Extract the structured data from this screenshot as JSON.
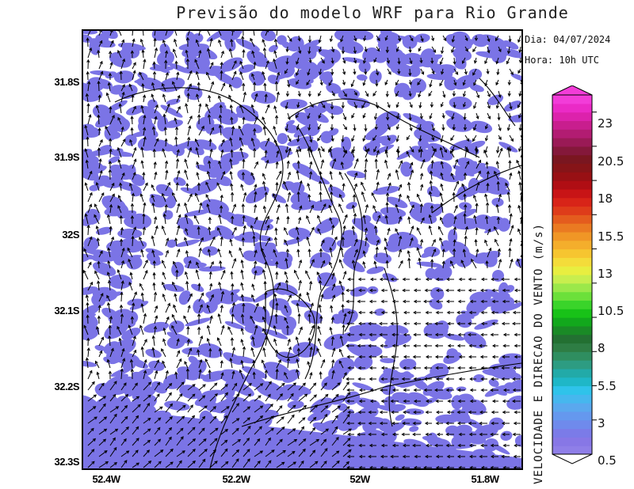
{
  "title": "Previsão do modelo WRF para Rio Grande",
  "info": {
    "date": "Dia: 04/07/2024",
    "hour": "Hora: 10h UTC"
  },
  "axes": {
    "lat_labels": [
      "31.8S",
      "31.9S",
      "32S",
      "32.1S",
      "32.2S",
      "32.3S"
    ],
    "lon_labels": [
      "52.4W",
      "52.2W",
      "52W",
      "51.8W"
    ]
  },
  "colorbar": {
    "title": "VELOCIDADE E DIRECAO DO VENTO (m/s)",
    "ticks": [
      "23",
      "20.5",
      "18",
      "15.5",
      "13",
      "10.5",
      "8",
      "5.5",
      "3",
      "0.5"
    ],
    "colors": [
      "#8f7fe8",
      "#8777e6",
      "#7b7be8",
      "#6f8aec",
      "#6598ee",
      "#5aa8ee",
      "#46b7ee",
      "#2fc3ea",
      "#1fb7c7",
      "#22aaa8",
      "#2d9c82",
      "#2f8e60",
      "#2e7d44",
      "#237032",
      "#1a8a26",
      "#12a81c",
      "#18c218",
      "#3ad42a",
      "#6ce03a",
      "#9be84a",
      "#c8ee4e",
      "#e8ee40",
      "#f4dc3a",
      "#f6c530",
      "#f4ae2c",
      "#f09626",
      "#ea7a22",
      "#e45c1e",
      "#de3c1a",
      "#d82418",
      "#c81416",
      "#b00e14",
      "#981014",
      "#861418",
      "#7a1620",
      "#84183a",
      "#9a1a56",
      "#b21c72",
      "#c81e8e",
      "#dc22ac",
      "#ea2ac6",
      "#f23cd8"
    ],
    "fill_color": "#7b74e6"
  }
}
